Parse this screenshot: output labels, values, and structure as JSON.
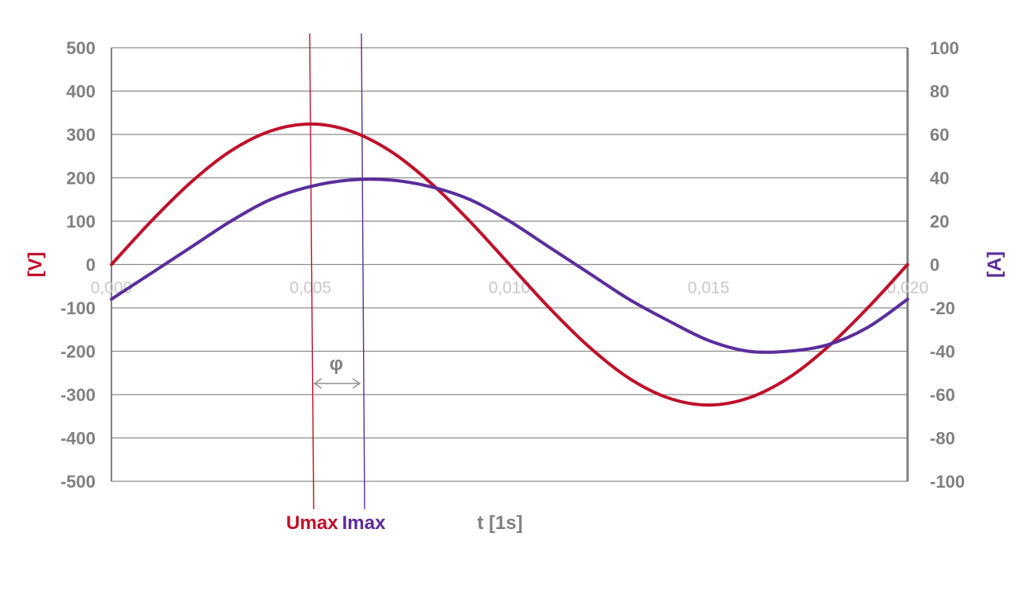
{
  "chart_data": {
    "type": "line",
    "xlabel": "t [1s]",
    "x_ticks": [
      "0,000",
      "0,005",
      "0,010",
      "0,015",
      "0,020"
    ],
    "xlim": [
      0,
      0.02
    ],
    "y_left": {
      "label": "[V]",
      "lim": [
        -500,
        500
      ],
      "ticks": [
        "500",
        "400",
        "300",
        "200",
        "100",
        "0",
        "-100",
        "-200",
        "-300",
        "-400",
        "-500"
      ]
    },
    "y_right": {
      "label": "[A]",
      "lim": [
        -100,
        100
      ],
      "ticks": [
        "100",
        "80",
        "60",
        "40",
        "20",
        "0",
        "-20",
        "-40",
        "-60",
        "-80",
        "-100"
      ]
    },
    "grid": true,
    "series": [
      {
        "name": "Umax",
        "axis": "left",
        "color": "#c0102a",
        "x": [
          0,
          0.001,
          0.002,
          0.003,
          0.004,
          0.005,
          0.006,
          0.007,
          0.008,
          0.009,
          0.01,
          0.011,
          0.012,
          0.013,
          0.014,
          0.015,
          0.016,
          0.017,
          0.018,
          0.019,
          0.02
        ],
        "y": [
          0,
          100,
          190,
          262,
          308,
          324,
          308,
          262,
          190,
          100,
          0,
          -100,
          -190,
          -262,
          -308,
          -324,
          -308,
          -262,
          -190,
          -100,
          0
        ]
      },
      {
        "name": "Imax",
        "axis": "right",
        "color": "#5a2d9c",
        "x": [
          0,
          0.001,
          0.002,
          0.003,
          0.004,
          0.005,
          0.006,
          0.007,
          0.008,
          0.009,
          0.01,
          0.011,
          0.012,
          0.013,
          0.014,
          0.015,
          0.016,
          0.017,
          0.018,
          0.019,
          0.02
        ],
        "y": [
          -16,
          -4,
          8,
          20,
          30,
          36,
          39,
          39,
          36,
          30,
          20,
          8,
          -4,
          -16,
          -26,
          -35,
          -40,
          -40,
          -37,
          -29,
          -16
        ]
      }
    ],
    "annotations": {
      "u_marker": {
        "x": 0.005,
        "label": "Umax",
        "color": "#c0102a"
      },
      "i_marker": {
        "x": 0.0063,
        "label": "Imax",
        "color": "#5a2d9c"
      },
      "phase": {
        "label": "φ"
      }
    }
  }
}
